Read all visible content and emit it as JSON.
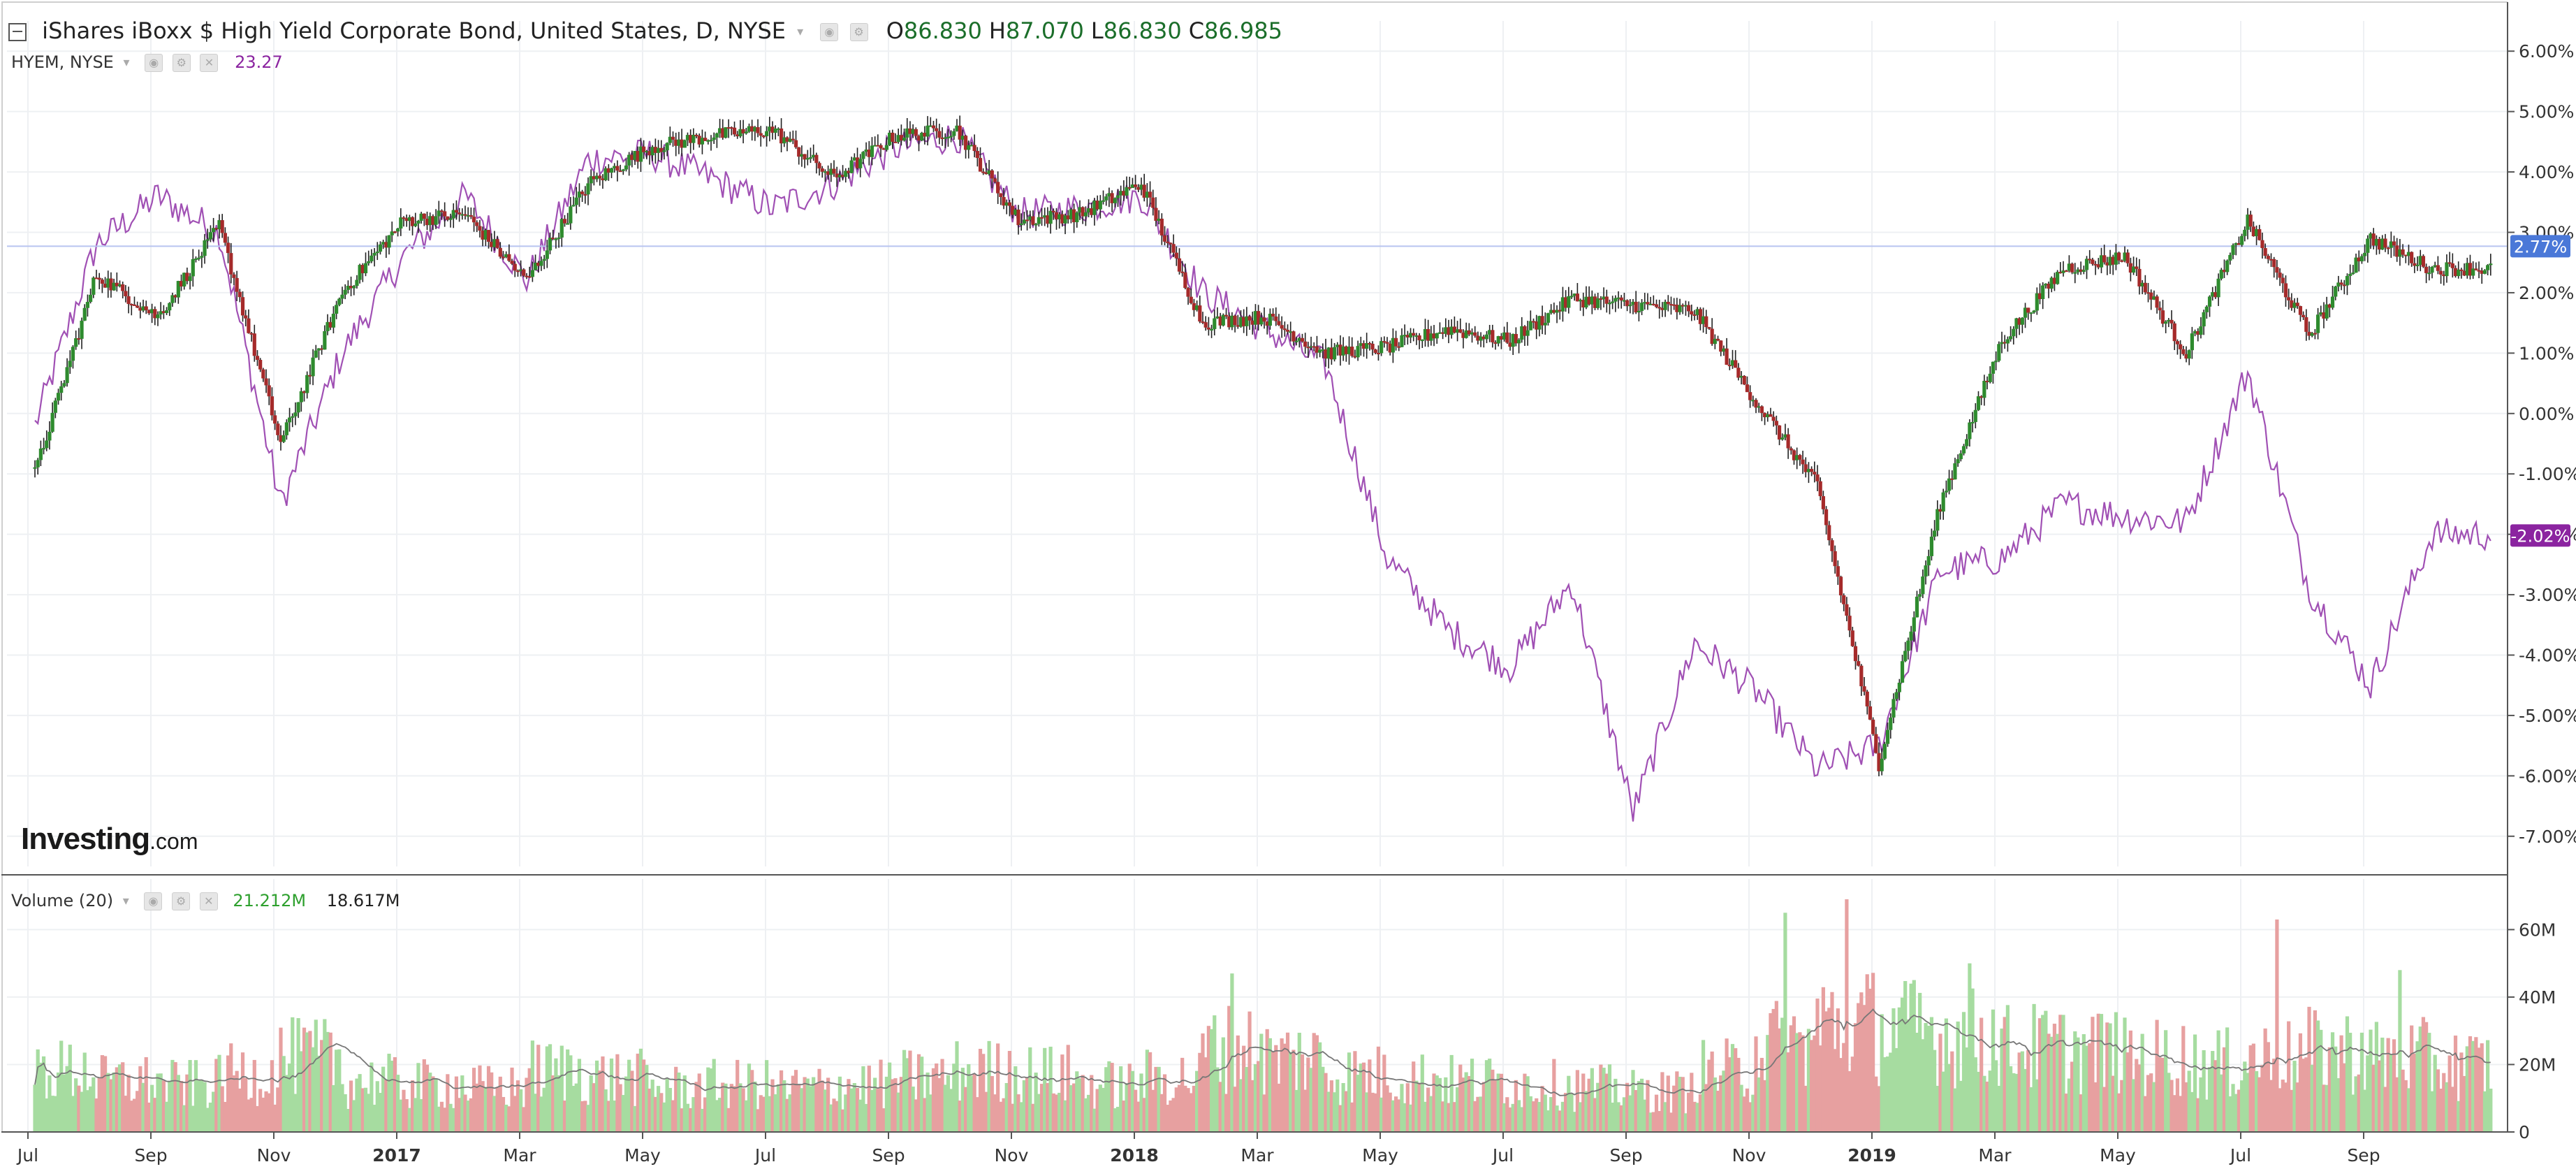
{
  "legend": {
    "title": "iShares iBoxx $ High Yield Corporate Bond, United States, D, NYSE",
    "ohlc": [
      {
        "key": "O",
        "value": "86.830"
      },
      {
        "key": "H",
        "value": "87.070"
      },
      {
        "key": "L",
        "value": "86.830"
      },
      {
        "key": "C",
        "value": "86.985"
      }
    ],
    "compare_symbol": "HYEM, NYSE",
    "compare_value": "23.27",
    "volume_label": "Volume (20)",
    "volume_value": "21.212M",
    "volume_ma_value": "18.617M"
  },
  "logo": {
    "brand": "Investing",
    "suffix": ".com"
  },
  "colors": {
    "up": "#2e8b2e",
    "down": "#a52a2a",
    "compare": "#a050b4",
    "vol_up": "#a6dca0",
    "vol_down": "#e7a0a0",
    "last_price_badge": "#4a78d8",
    "compare_badge": "#8b24a0",
    "grid": "#eef0f3",
    "axis_text": "#333333"
  },
  "chart_data": {
    "type": "candlestick+line+bar",
    "x_ticks": [
      "Jul",
      "Sep",
      "Nov",
      "2017",
      "Mar",
      "May",
      "Jul",
      "Sep",
      "Nov",
      "2018",
      "Mar",
      "May",
      "Jul",
      "Sep",
      "Nov",
      "2019",
      "Mar",
      "May",
      "Jul",
      "Sep"
    ],
    "bold_x_ticks": [
      "2017",
      "2018",
      "2019"
    ],
    "price_axis": {
      "unit": "%",
      "ticks": [
        "6.00%",
        "5.00%",
        "4.00%",
        "3.00%",
        "2.00%",
        "1.00%",
        "0.00%",
        "-1.00%",
        "-2.00%",
        "-3.00%",
        "-4.00%",
        "-5.00%",
        "-6.00%",
        "-7.00%"
      ],
      "range": [
        -7.5,
        6.5
      ]
    },
    "last_price_label": "2.77%",
    "last_price_value": 2.77,
    "compare_last_label": "-2.02%",
    "compare_last_value": -2.02,
    "price_series": {
      "name": "iShares iBoxx $ High Yield Corporate Bond",
      "anchor_months": [
        [
          "Jul",
          -1.0
        ],
        [
          "Aug",
          2.3
        ],
        [
          "Sep",
          1.6
        ],
        [
          "Oct",
          3.1
        ],
        [
          "Nov",
          -0.5
        ],
        [
          "Dec",
          2.0
        ],
        [
          "Jan",
          3.2
        ],
        [
          "Feb",
          3.3
        ],
        [
          "Mar",
          2.2
        ],
        [
          "Apr",
          3.8
        ],
        [
          "May",
          4.4
        ],
        [
          "Jun",
          4.6
        ],
        [
          "Jul",
          4.7
        ],
        [
          "Aug",
          3.9
        ],
        [
          "Sep",
          4.6
        ],
        [
          "Oct",
          4.7
        ],
        [
          "Nov",
          3.2
        ],
        [
          "Dec",
          3.3
        ],
        [
          "Jan",
          3.8
        ],
        [
          "Feb",
          1.5
        ],
        [
          "Mar",
          1.6
        ],
        [
          "Apr",
          1.0
        ],
        [
          "May",
          1.1
        ],
        [
          "Jun",
          1.4
        ],
        [
          "Jul",
          1.2
        ],
        [
          "Aug",
          1.9
        ],
        [
          "Sep",
          1.8
        ],
        [
          "Oct",
          1.7
        ],
        [
          "Nov",
          0.2
        ],
        [
          "Dec",
          -1.2
        ],
        [
          "Jan",
          -5.8
        ],
        [
          "Feb",
          -1.5
        ],
        [
          "Mar",
          1.2
        ],
        [
          "Apr",
          2.4
        ],
        [
          "May",
          2.6
        ],
        [
          "Jun",
          1.0
        ],
        [
          "Jul",
          3.2
        ],
        [
          "Aug",
          1.3
        ],
        [
          "Sep",
          2.9
        ],
        [
          "Oct",
          2.4
        ]
      ]
    },
    "compare_series": {
      "name": "HYEM, NYSE",
      "anchor_months": [
        [
          "Jul",
          -0.2
        ],
        [
          "Aug",
          2.8
        ],
        [
          "Sep",
          3.6
        ],
        [
          "Oct",
          3.0
        ],
        [
          "Nov",
          -1.5
        ],
        [
          "Dec",
          1.0
        ],
        [
          "Jan",
          2.6
        ],
        [
          "Feb",
          3.6
        ],
        [
          "Mar",
          2.2
        ],
        [
          "Apr",
          4.2
        ],
        [
          "May",
          4.3
        ],
        [
          "Jun",
          3.9
        ],
        [
          "Jul",
          3.4
        ],
        [
          "Aug",
          3.8
        ],
        [
          "Sep",
          4.4
        ],
        [
          "Oct",
          4.6
        ],
        [
          "Nov",
          3.3
        ],
        [
          "Dec",
          3.4
        ],
        [
          "Jan",
          3.6
        ],
        [
          "Feb",
          2.0
        ],
        [
          "Mar",
          1.4
        ],
        [
          "Apr",
          0.8
        ],
        [
          "May",
          -2.4
        ],
        [
          "Jun",
          -3.6
        ],
        [
          "Jul",
          -4.2
        ],
        [
          "Aug",
          -2.8
        ],
        [
          "Sep",
          -6.6
        ],
        [
          "Oct",
          -3.8
        ],
        [
          "Nov",
          -4.6
        ],
        [
          "Dec",
          -5.9
        ],
        [
          "Jan",
          -5.5
        ],
        [
          "Feb",
          -2.6
        ],
        [
          "Mar",
          -2.4
        ],
        [
          "Apr",
          -1.5
        ],
        [
          "May",
          -1.7
        ],
        [
          "Jun",
          -1.8
        ],
        [
          "Jul",
          0.7
        ],
        [
          "Aug",
          -2.9
        ],
        [
          "Sep",
          -4.5
        ],
        [
          "Oct",
          -2.0
        ]
      ]
    },
    "volume_axis": {
      "ticks": [
        "60M",
        "40M",
        "20M",
        "0"
      ],
      "range": [
        0,
        75
      ]
    },
    "volume_series": {
      "name": "Volume (20)",
      "unit": "M",
      "monthly_average": [
        18,
        15,
        14,
        17,
        22,
        15,
        14,
        13,
        18,
        16,
        13,
        14,
        13,
        14,
        16,
        18,
        17,
        14,
        16,
        25,
        22,
        17,
        16,
        15,
        14,
        13,
        12,
        18,
        26,
        32,
        30,
        28,
        25,
        24,
        22,
        20,
        22,
        24,
        22,
        20
      ],
      "spikes": [
        {
          "month_index": 19,
          "value": 47
        },
        {
          "month_index": 28,
          "value": 65
        },
        {
          "month_index": 29,
          "value": 69
        },
        {
          "month_index": 31,
          "value": 50
        },
        {
          "month_index": 36,
          "value": 63
        },
        {
          "month_index": 38,
          "value": 48
        }
      ]
    }
  }
}
